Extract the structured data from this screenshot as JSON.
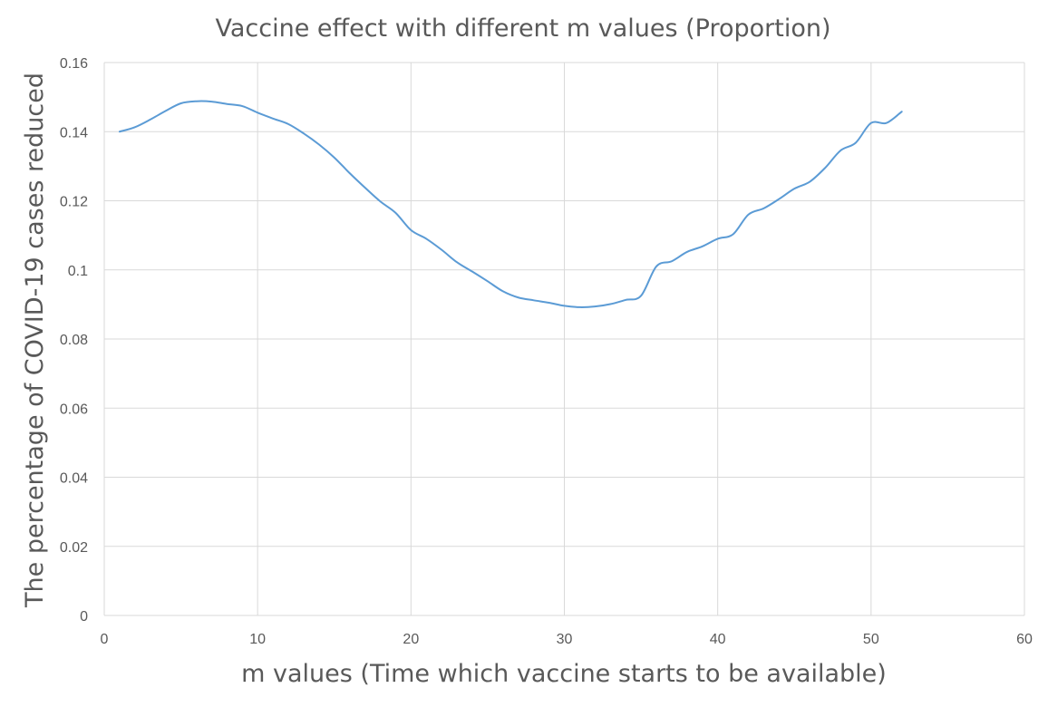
{
  "chart_data": {
    "type": "line",
    "title": "Vaccine effect with different m values (Proportion)",
    "xlabel": "m values (Time which vaccine starts to be available)",
    "ylabel": "The percentage of COVID-19 cases reduced",
    "xlim": [
      0,
      60
    ],
    "ylim": [
      0,
      0.16
    ],
    "x_ticks": [
      "0",
      "10",
      "20",
      "30",
      "40",
      "50",
      "60"
    ],
    "y_ticks": [
      "0",
      "0.02",
      "0.04",
      "0.06",
      "0.08",
      "0.1",
      "0.12",
      "0.14",
      "0.16"
    ],
    "grid": true,
    "smooth": true,
    "series": [
      {
        "color": "#5b9bd5",
        "x": [
          1,
          2,
          3,
          4,
          5,
          6,
          7,
          8,
          9,
          10,
          11,
          12,
          13,
          14,
          15,
          16,
          17,
          18,
          19,
          20,
          21,
          22,
          23,
          24,
          25,
          26,
          27,
          28,
          29,
          30,
          31,
          32,
          33,
          34,
          35,
          36,
          37,
          38,
          39,
          40,
          41,
          42,
          43,
          44,
          45,
          46,
          47,
          48,
          49,
          50,
          51,
          52
        ],
        "values": [
          0.14,
          0.1413,
          0.1435,
          0.146,
          0.1482,
          0.1488,
          0.1487,
          0.148,
          0.1474,
          0.1455,
          0.1438,
          0.1422,
          0.1395,
          0.1363,
          0.1325,
          0.128,
          0.1238,
          0.1198,
          0.1165,
          0.1115,
          0.109,
          0.1058,
          0.1022,
          0.0995,
          0.0967,
          0.0938,
          0.092,
          0.0912,
          0.0905,
          0.0896,
          0.0892,
          0.0894,
          0.0901,
          0.0913,
          0.0925,
          0.101,
          0.1025,
          0.1052,
          0.1068,
          0.109,
          0.1103,
          0.116,
          0.1178,
          0.1205,
          0.1235,
          0.1255,
          0.1295,
          0.1345,
          0.1368,
          0.1425,
          0.1425,
          0.1458
        ]
      }
    ]
  }
}
